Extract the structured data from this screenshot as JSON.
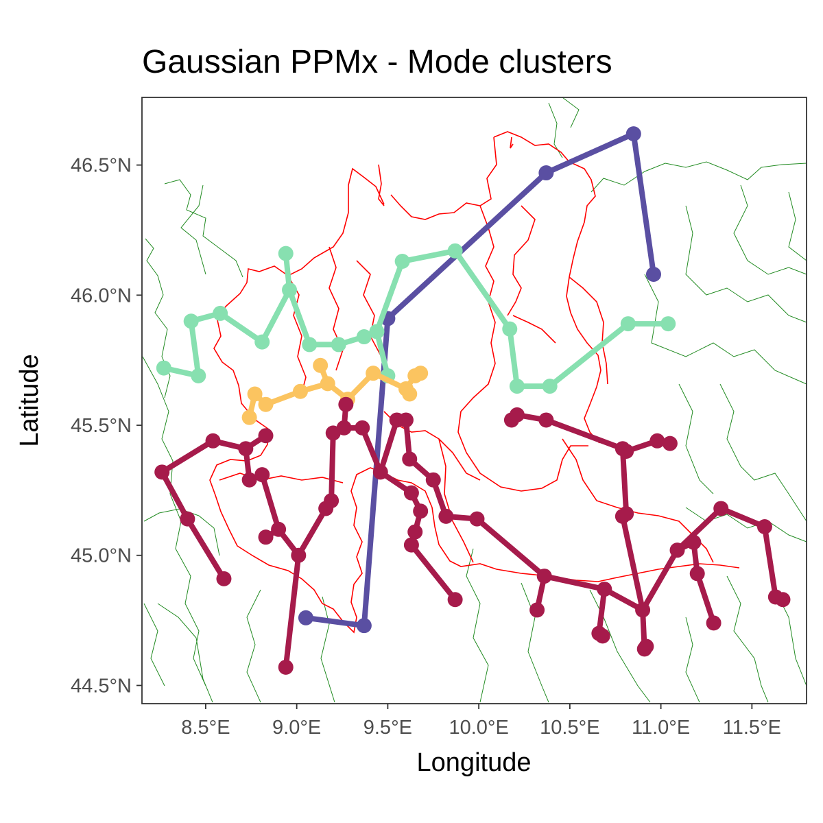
{
  "chart_data": {
    "type": "scatter",
    "title": "Gaussian PPMx - Mode clusters",
    "xlabel": "Longitude",
    "ylabel": "Latitude",
    "xlim": [
      8.15,
      11.8
    ],
    "ylim": [
      44.43,
      46.76
    ],
    "x_ticks": [
      {
        "value": 8.5,
        "label": "8.5°E"
      },
      {
        "value": 9.0,
        "label": "9.0°E"
      },
      {
        "value": 9.5,
        "label": "9.5°E"
      },
      {
        "value": 10.0,
        "label": "10.0°E"
      },
      {
        "value": 10.5,
        "label": "10.5°E"
      },
      {
        "value": 11.0,
        "label": "11.0°E"
      },
      {
        "value": 11.5,
        "label": "11.5°E"
      }
    ],
    "y_ticks": [
      {
        "value": 44.5,
        "label": "44.5°N"
      },
      {
        "value": 45.0,
        "label": "45.0°N"
      },
      {
        "value": 45.5,
        "label": "45.5°N"
      },
      {
        "value": 46.0,
        "label": "46.0°N"
      },
      {
        "value": 46.5,
        "label": "46.5°N"
      }
    ],
    "grid": false,
    "legend": "none",
    "colors": {
      "region_border": "#ff0000",
      "province_border": "#228b22",
      "panel_border": "#333333"
    },
    "clusters": [
      {
        "color": "#5a4fa2",
        "points": [
          [
            9.05,
            44.76
          ],
          [
            9.37,
            44.73
          ],
          [
            9.5,
            45.91
          ],
          [
            10.37,
            46.47
          ],
          [
            10.85,
            46.62
          ],
          [
            10.96,
            46.08
          ]
        ],
        "edges": [
          [
            0,
            1
          ],
          [
            1,
            2
          ],
          [
            2,
            3
          ],
          [
            3,
            4
          ],
          [
            4,
            5
          ]
        ]
      },
      {
        "color": "#87e0b0",
        "points": [
          [
            8.27,
            45.72
          ],
          [
            8.46,
            45.69
          ],
          [
            8.42,
            45.9
          ],
          [
            8.58,
            45.93
          ],
          [
            8.81,
            45.82
          ],
          [
            8.94,
            46.16
          ],
          [
            8.96,
            46.02
          ],
          [
            9.07,
            45.81
          ],
          [
            9.23,
            45.81
          ],
          [
            9.37,
            45.84
          ],
          [
            9.44,
            45.86
          ],
          [
            9.5,
            45.69
          ],
          [
            9.58,
            46.13
          ],
          [
            9.87,
            46.17
          ],
          [
            10.17,
            45.87
          ],
          [
            10.21,
            45.65
          ],
          [
            10.39,
            45.65
          ],
          [
            10.82,
            45.89
          ],
          [
            11.04,
            45.89
          ]
        ],
        "edges": [
          [
            0,
            1
          ],
          [
            1,
            2
          ],
          [
            2,
            3
          ],
          [
            3,
            4
          ],
          [
            4,
            6
          ],
          [
            5,
            6
          ],
          [
            6,
            7
          ],
          [
            7,
            8
          ],
          [
            8,
            9
          ],
          [
            9,
            10
          ],
          [
            10,
            11
          ],
          [
            10,
            12
          ],
          [
            12,
            13
          ],
          [
            13,
            14
          ],
          [
            14,
            15
          ],
          [
            15,
            16
          ],
          [
            16,
            17
          ],
          [
            17,
            18
          ]
        ]
      },
      {
        "color": "#fbc460",
        "points": [
          [
            8.74,
            45.53
          ],
          [
            8.77,
            45.62
          ],
          [
            8.83,
            45.58
          ],
          [
            9.02,
            45.63
          ],
          [
            9.13,
            45.73
          ],
          [
            9.17,
            45.66
          ],
          [
            9.28,
            45.6
          ],
          [
            9.42,
            45.7
          ],
          [
            9.6,
            45.64
          ],
          [
            9.62,
            45.62
          ],
          [
            9.65,
            45.69
          ],
          [
            9.68,
            45.7
          ]
        ],
        "edges": [
          [
            0,
            1
          ],
          [
            1,
            2
          ],
          [
            2,
            3
          ],
          [
            3,
            5
          ],
          [
            4,
            5
          ],
          [
            5,
            6
          ],
          [
            6,
            7
          ],
          [
            7,
            8
          ],
          [
            8,
            9
          ],
          [
            8,
            10
          ],
          [
            10,
            11
          ]
        ]
      },
      {
        "color": "#a61b4b",
        "points": [
          [
            8.26,
            45.32
          ],
          [
            8.54,
            45.44
          ],
          [
            8.72,
            45.41
          ],
          [
            8.83,
            45.46
          ],
          [
            8.4,
            45.14
          ],
          [
            8.6,
            44.91
          ],
          [
            8.74,
            45.29
          ],
          [
            8.81,
            45.31
          ],
          [
            8.9,
            45.1
          ],
          [
            8.83,
            45.07
          ],
          [
            9.01,
            45.0
          ],
          [
            8.94,
            44.57
          ],
          [
            9.16,
            45.18
          ],
          [
            9.19,
            45.21
          ],
          [
            9.2,
            45.47
          ],
          [
            9.26,
            45.49
          ],
          [
            9.27,
            45.58
          ],
          [
            9.36,
            45.49
          ],
          [
            9.46,
            45.32
          ],
          [
            9.55,
            45.52
          ],
          [
            9.6,
            45.52
          ],
          [
            9.62,
            45.37
          ],
          [
            9.75,
            45.29
          ],
          [
            9.63,
            45.24
          ],
          [
            9.68,
            45.17
          ],
          [
            9.65,
            45.09
          ],
          [
            9.63,
            45.04
          ],
          [
            9.87,
            44.83
          ],
          [
            9.82,
            45.15
          ],
          [
            9.99,
            45.14
          ],
          [
            10.36,
            44.92
          ],
          [
            10.32,
            44.79
          ],
          [
            10.69,
            44.87
          ],
          [
            10.66,
            44.7
          ],
          [
            10.68,
            44.69
          ],
          [
            10.9,
            44.79
          ],
          [
            10.91,
            44.64
          ],
          [
            10.92,
            44.65
          ],
          [
            11.09,
            45.02
          ],
          [
            11.18,
            45.05
          ],
          [
            11.2,
            44.93
          ],
          [
            11.29,
            44.74
          ],
          [
            11.33,
            45.18
          ],
          [
            11.57,
            45.11
          ],
          [
            11.63,
            44.84
          ],
          [
            11.67,
            44.83
          ],
          [
            10.18,
            45.52
          ],
          [
            10.21,
            45.54
          ],
          [
            10.37,
            45.52
          ],
          [
            10.79,
            45.41
          ],
          [
            10.81,
            45.4
          ],
          [
            10.98,
            45.44
          ],
          [
            11.05,
            45.43
          ],
          [
            10.81,
            45.16
          ],
          [
            10.79,
            45.15
          ]
        ],
        "edges": [
          [
            0,
            1
          ],
          [
            1,
            2
          ],
          [
            2,
            3
          ],
          [
            0,
            4
          ],
          [
            4,
            5
          ],
          [
            2,
            6
          ],
          [
            6,
            7
          ],
          [
            7,
            8
          ],
          [
            8,
            9
          ],
          [
            8,
            10
          ],
          [
            10,
            11
          ],
          [
            10,
            12
          ],
          [
            12,
            13
          ],
          [
            13,
            14
          ],
          [
            14,
            15
          ],
          [
            15,
            16
          ],
          [
            15,
            17
          ],
          [
            17,
            18
          ],
          [
            18,
            19
          ],
          [
            19,
            20
          ],
          [
            20,
            21
          ],
          [
            21,
            22
          ],
          [
            18,
            23
          ],
          [
            23,
            24
          ],
          [
            24,
            25
          ],
          [
            25,
            26
          ],
          [
            26,
            27
          ],
          [
            22,
            28
          ],
          [
            28,
            29
          ],
          [
            29,
            30
          ],
          [
            30,
            31
          ],
          [
            30,
            32
          ],
          [
            32,
            33
          ],
          [
            33,
            34
          ],
          [
            32,
            35
          ],
          [
            35,
            36
          ],
          [
            36,
            37
          ],
          [
            35,
            38
          ],
          [
            38,
            39
          ],
          [
            39,
            40
          ],
          [
            40,
            41
          ],
          [
            38,
            42
          ],
          [
            42,
            43
          ],
          [
            43,
            44
          ],
          [
            44,
            45
          ],
          [
            46,
            47
          ],
          [
            47,
            48
          ],
          [
            48,
            49
          ],
          [
            49,
            50
          ],
          [
            50,
            51
          ],
          [
            51,
            52
          ],
          [
            49,
            53
          ],
          [
            53,
            54
          ],
          [
            54,
            35
          ]
        ]
      }
    ]
  }
}
